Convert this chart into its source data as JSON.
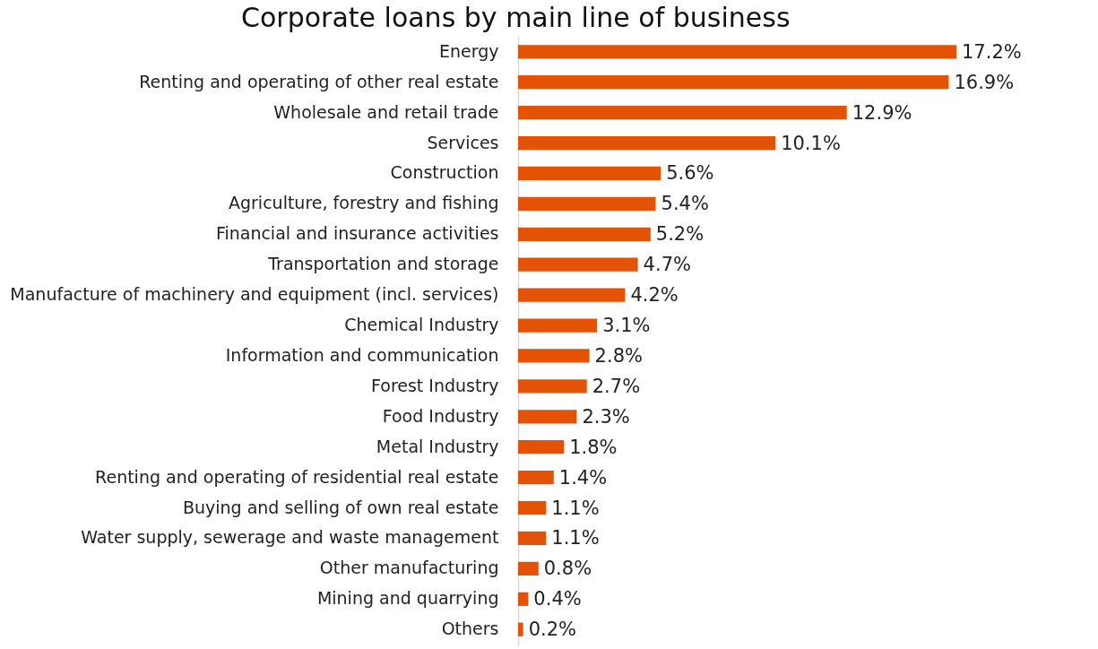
{
  "chart_data": {
    "type": "bar",
    "orientation": "horizontal",
    "title": "Corporate loans by main line of business",
    "categories": [
      "Energy",
      "Renting and operating of other real estate",
      "Wholesale and retail trade",
      "Services",
      "Construction",
      "Agriculture, forestry and fishing",
      "Financial and insurance activities",
      "Transportation and storage",
      "Manufacture of machinery and equipment (incl. services)",
      "Chemical Industry",
      "Information and communication",
      "Forest Industry",
      "Food Industry",
      "Metal Industry",
      "Renting and operating of residential real estate",
      "Buying and selling of own real estate",
      "Water supply, sewerage and waste management",
      "Other manufacturing",
      "Mining and quarrying",
      "Others"
    ],
    "values": [
      17.2,
      16.9,
      12.9,
      10.1,
      5.6,
      5.4,
      5.2,
      4.7,
      4.2,
      3.1,
      2.8,
      2.7,
      2.3,
      1.8,
      1.4,
      1.1,
      1.1,
      0.8,
      0.4,
      0.2
    ],
    "value_labels": [
      "17.2%",
      "16.9%",
      "12.9%",
      "10.1%",
      "5.6%",
      "5.4%",
      "5.2%",
      "4.7%",
      "4.2%",
      "3.1%",
      "2.8%",
      "2.7%",
      "2.3%",
      "1.8%",
      "1.4%",
      "1.1%",
      "1.1%",
      "0.8%",
      "0.4%",
      "0.2%"
    ],
    "color": "#e35205",
    "grid": false
  }
}
